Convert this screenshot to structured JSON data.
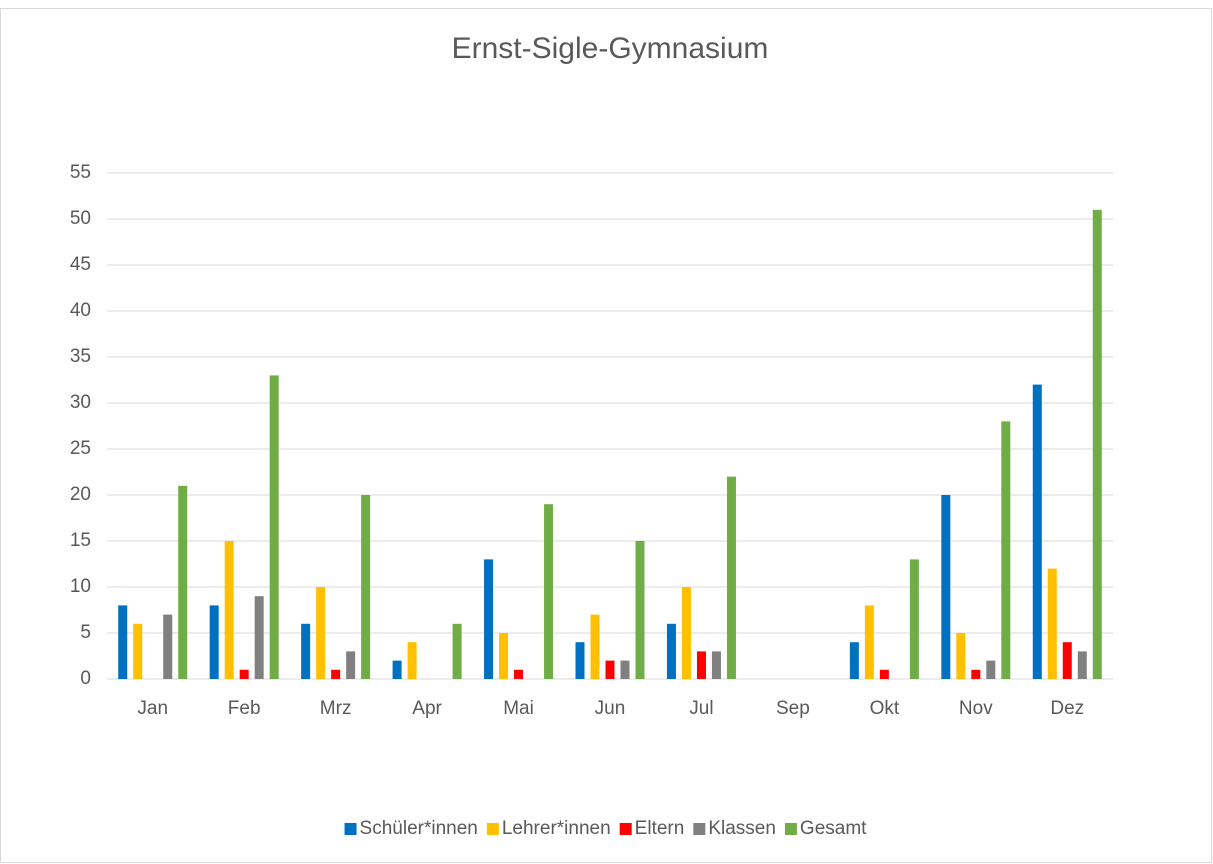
{
  "chart_data": {
    "type": "bar",
    "title": "Ernst-Sigle-Gymnasium",
    "categories": [
      "Jan",
      "Feb",
      "Mrz",
      "Apr",
      "Mai",
      "Jun",
      "Jul",
      "Sep",
      "Okt",
      "Nov",
      "Dez"
    ],
    "series": [
      {
        "name": "Schüler*innen",
        "color": "#0070c0",
        "values": [
          8,
          8,
          6,
          2,
          13,
          4,
          6,
          0,
          4,
          20,
          32
        ]
      },
      {
        "name": "Lehrer*innen",
        "color": "#ffc000",
        "values": [
          6,
          15,
          10,
          4,
          5,
          7,
          10,
          0,
          8,
          5,
          12
        ]
      },
      {
        "name": "Eltern",
        "color": "#ff0000",
        "values": [
          0,
          1,
          1,
          0,
          1,
          2,
          3,
          0,
          1,
          1,
          4
        ]
      },
      {
        "name": "Klassen",
        "color": "#808080",
        "values": [
          7,
          9,
          3,
          0,
          0,
          2,
          3,
          0,
          0,
          2,
          3
        ]
      },
      {
        "name": "Gesamt",
        "color": "#70ad47",
        "values": [
          21,
          33,
          20,
          6,
          19,
          15,
          22,
          0,
          13,
          28,
          51
        ]
      }
    ],
    "ylim": [
      0,
      55
    ],
    "yticks": [
      0,
      5,
      10,
      15,
      20,
      25,
      30,
      35,
      40,
      45,
      50,
      55
    ],
    "grid": true,
    "legend": "bottom"
  }
}
